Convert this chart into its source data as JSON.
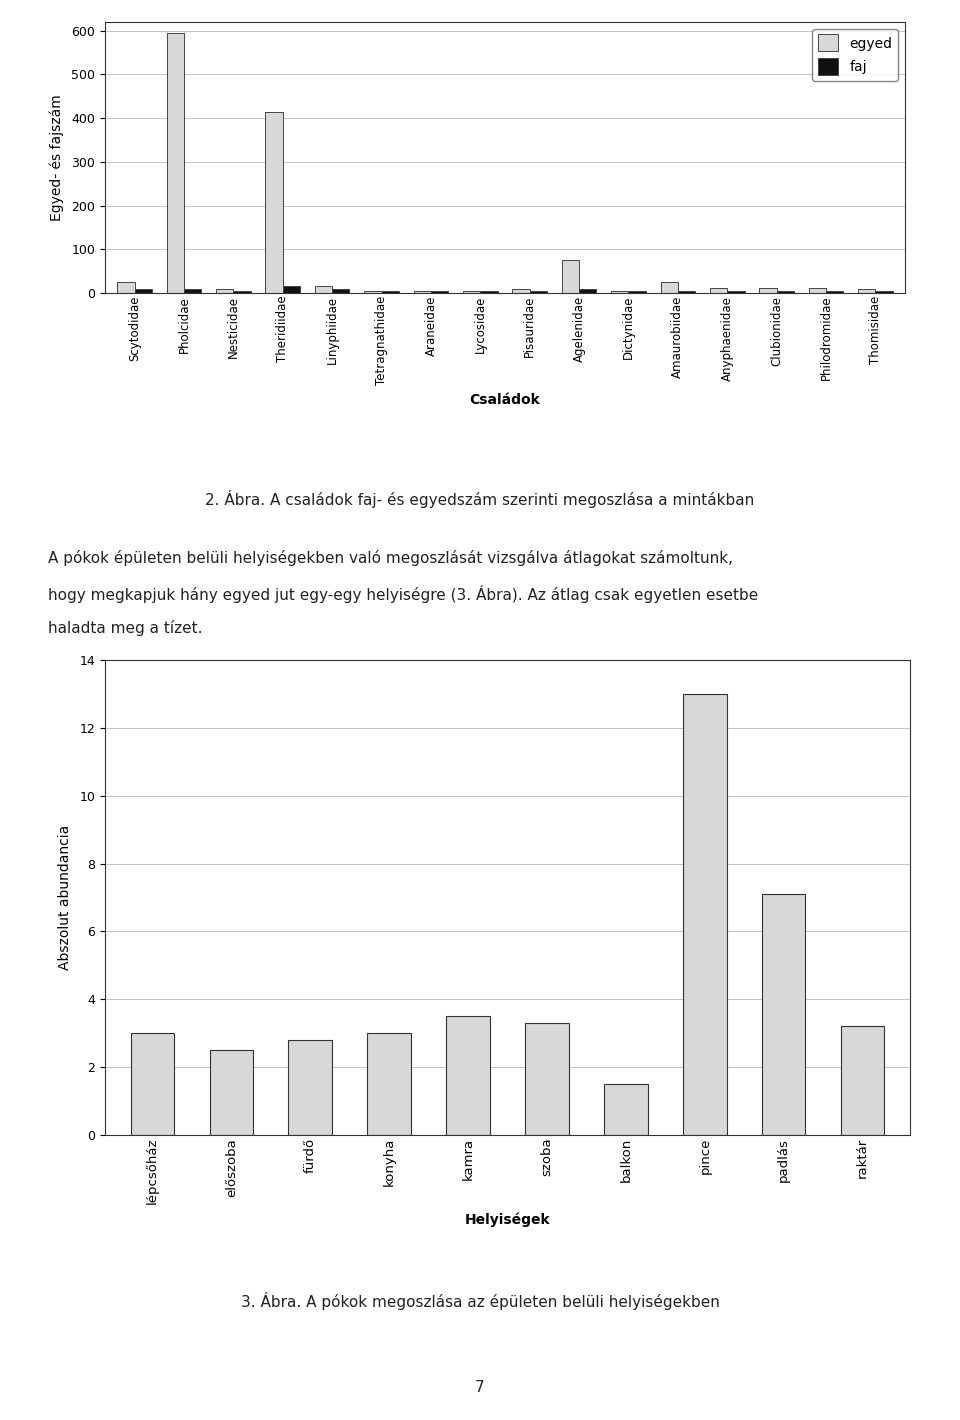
{
  "chart1": {
    "categories": [
      "Scytodidae",
      "Pholcidae",
      "Nesticidae",
      "Theridiidae",
      "Linyphiidae",
      "Tetragnathidae",
      "Araneidae",
      "Lycosidae",
      "Pisauridae",
      "Agelenidae",
      "Dictynidae",
      "Amaurobiidae",
      "Anyphaenidae",
      "Clubionidae",
      "Philodromidae",
      "Thomisidae"
    ],
    "egyed": [
      25,
      595,
      10,
      415,
      15,
      5,
      5,
      5,
      10,
      75,
      5,
      25,
      12,
      12,
      12,
      10
    ],
    "faj": [
      10,
      10,
      5,
      15,
      10,
      5,
      5,
      5,
      5,
      10,
      5,
      5,
      5,
      5,
      5,
      5
    ],
    "ylabel": "Egyed- és fajszám",
    "xlabel": "Családok",
    "ylim": [
      0,
      620
    ],
    "yticks": [
      0,
      100,
      200,
      300,
      400,
      500,
      600
    ],
    "egyed_color": "#d8d8d8",
    "faj_color": "#111111",
    "legend_egyed": "egyed",
    "legend_faj": "faj"
  },
  "chart2": {
    "categories": [
      "lépcsőház",
      "előszoba",
      "fürdő",
      "konyha",
      "kamra",
      "szoba",
      "balkon",
      "pince",
      "padlás",
      "raktár"
    ],
    "values": [
      3.0,
      2.5,
      2.8,
      3.0,
      3.5,
      3.3,
      1.5,
      13.0,
      7.1,
      3.2
    ],
    "ylabel": "Abszolut abundancia",
    "xlabel": "Helyiségek",
    "ylim": [
      0,
      14
    ],
    "yticks": [
      0,
      2,
      4,
      6,
      8,
      10,
      12,
      14
    ],
    "bar_color": "#d8d8d8",
    "bar_edge_color": "#333333"
  },
  "caption1": "2. Ábra. A családok faj- és egyedszám szerinti megoszlása a mintákban",
  "text_line1": "A pókok épületen belüli helyiségekben való megoszlását vizsgálva átlagokat számoltunk,",
  "text_line2": "hogy megkapjuk hány egyed jut egy-egy helyiségre (3. Ábra). Az átlag csak egyetlen esetbe",
  "text_line3": "haladta meg a tízet.",
  "caption2": "3. Ábra. A pókok megoszlása az épületen belüli helyiségekben",
  "page_number": "7",
  "background_color": "#ffffff"
}
